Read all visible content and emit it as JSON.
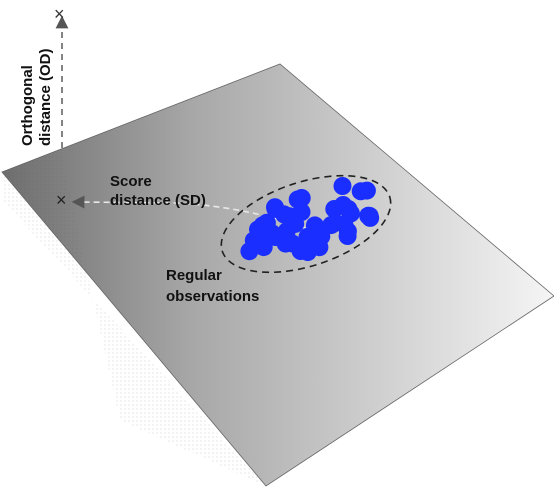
{
  "colors": {
    "plane_light": "#f2f2f2",
    "plane_dark": "#7a7a7a",
    "points": "#1a2fff",
    "dashed_lines": "#666666",
    "text": "#111111"
  },
  "labels": {
    "od_line1": "Orthogonal",
    "od_line2": "distance (OD)",
    "sd_line1": "Score",
    "sd_line2": "distance (SD)",
    "reg_line1": "Regular",
    "reg_line2": "observations"
  },
  "markers": {
    "outlier_marker": "×"
  },
  "icons": {
    "outlier_marker": "cross-mark"
  },
  "regular_observation_count": 48
}
